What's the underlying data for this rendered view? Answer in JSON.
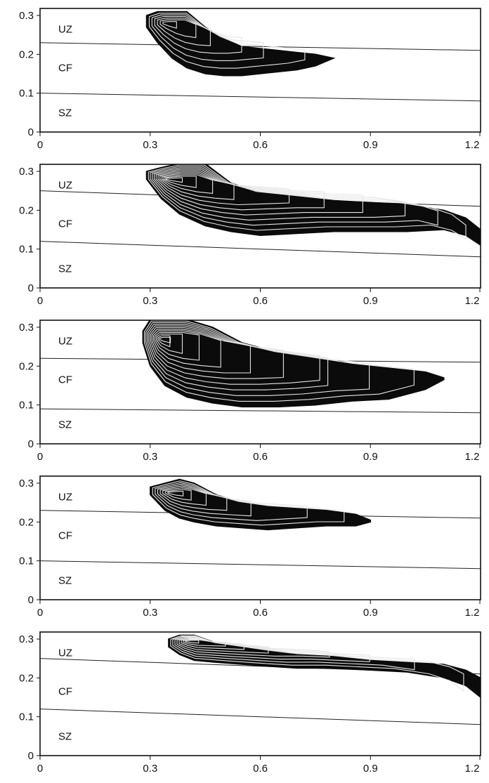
{
  "chart_data": [
    {
      "type": "area",
      "xlim": [
        0,
        1.2
      ],
      "ylim": [
        0,
        0.3
      ],
      "xticks": [
        "0",
        "0.3",
        "0.6",
        "0.9",
        "1.2"
      ],
      "yticks": [
        "0",
        "0.1",
        "0.2",
        "0.3"
      ],
      "zones": [
        "UZ",
        "CF",
        "SZ"
      ],
      "boundaries": [
        {
          "x": [
            0,
            1.2
          ],
          "y": [
            0.23,
            0.21
          ]
        },
        {
          "x": [
            0,
            1.2
          ],
          "y": [
            0.1,
            0.08
          ]
        }
      ],
      "plume_upper": {
        "x": [
          0.29,
          0.32,
          0.36,
          0.4,
          0.45,
          0.5,
          0.55,
          0.6,
          0.65,
          0.7,
          0.75,
          0.8
        ],
        "y": [
          0.3,
          0.31,
          0.31,
          0.31,
          0.27,
          0.24,
          0.22,
          0.215,
          0.21,
          0.205,
          0.2,
          0.19
        ]
      },
      "plume_lower": {
        "x": [
          0.29,
          0.32,
          0.36,
          0.4,
          0.45,
          0.5,
          0.55,
          0.6,
          0.65,
          0.7,
          0.75,
          0.8
        ],
        "y": [
          0.27,
          0.23,
          0.19,
          0.165,
          0.15,
          0.145,
          0.145,
          0.15,
          0.155,
          0.16,
          0.17,
          0.19
        ]
      },
      "contours": 7
    },
    {
      "type": "area",
      "xlim": [
        0,
        1.2
      ],
      "ylim": [
        0,
        0.3
      ],
      "xticks": [
        "0",
        "0.3",
        "0.6",
        "0.9",
        "1.2"
      ],
      "yticks": [
        "0",
        "0.1",
        "0.2",
        "0.3"
      ],
      "zones": [
        "UZ",
        "CF",
        "SZ"
      ],
      "boundaries": [
        {
          "x": [
            0,
            1.2
          ],
          "y": [
            0.25,
            0.21
          ]
        },
        {
          "x": [
            0,
            1.2
          ],
          "y": [
            0.12,
            0.08
          ]
        }
      ],
      "plume_upper": {
        "x": [
          0.29,
          0.33,
          0.38,
          0.45,
          0.52,
          0.6,
          0.7,
          0.8,
          0.9,
          1.0,
          1.1,
          1.16,
          1.2,
          1.22
        ],
        "y": [
          0.3,
          0.31,
          0.32,
          0.32,
          0.27,
          0.245,
          0.235,
          0.225,
          0.22,
          0.215,
          0.2,
          0.18,
          0.15,
          0.11
        ]
      },
      "plume_lower": {
        "x": [
          0.29,
          0.33,
          0.38,
          0.45,
          0.52,
          0.6,
          0.7,
          0.8,
          0.9,
          1.0,
          1.1,
          1.16,
          1.2,
          1.22
        ],
        "y": [
          0.28,
          0.23,
          0.19,
          0.16,
          0.145,
          0.135,
          0.14,
          0.145,
          0.145,
          0.145,
          0.15,
          0.135,
          0.11,
          0.08
        ]
      },
      "contours": 11
    },
    {
      "type": "area",
      "xlim": [
        0,
        1.2
      ],
      "ylim": [
        0,
        0.3
      ],
      "xticks": [
        "0",
        "0.3",
        "0.6",
        "0.9",
        "1.2"
      ],
      "yticks": [
        "0",
        "0.1",
        "0.2",
        "0.3"
      ],
      "zones": [
        "UZ",
        "CF",
        "SZ"
      ],
      "boundaries": [
        {
          "x": [
            0,
            1.2
          ],
          "y": [
            0.22,
            0.21
          ]
        },
        {
          "x": [
            0,
            1.2
          ],
          "y": [
            0.09,
            0.08
          ]
        }
      ],
      "plume_upper": {
        "x": [
          0.28,
          0.3,
          0.34,
          0.4,
          0.47,
          0.55,
          0.65,
          0.75,
          0.85,
          0.95,
          1.05,
          1.1
        ],
        "y": [
          0.29,
          0.32,
          0.32,
          0.32,
          0.3,
          0.26,
          0.235,
          0.22,
          0.205,
          0.195,
          0.185,
          0.17
        ]
      },
      "plume_lower": {
        "x": [
          0.28,
          0.3,
          0.34,
          0.4,
          0.47,
          0.55,
          0.65,
          0.75,
          0.85,
          0.95,
          1.05,
          1.1
        ],
        "y": [
          0.26,
          0.2,
          0.15,
          0.12,
          0.105,
          0.095,
          0.095,
          0.1,
          0.11,
          0.115,
          0.14,
          0.165
        ]
      },
      "contours": 12
    },
    {
      "type": "area",
      "xlim": [
        0,
        1.2
      ],
      "ylim": [
        0,
        0.3
      ],
      "xticks": [
        "0",
        "0.3",
        "0.6",
        "0.9",
        "1.2"
      ],
      "yticks": [
        "0",
        "0.1",
        "0.2",
        "0.3"
      ],
      "zones": [
        "UZ",
        "CF",
        "SZ"
      ],
      "boundaries": [
        {
          "x": [
            0,
            1.2
          ],
          "y": [
            0.23,
            0.21
          ]
        },
        {
          "x": [
            0,
            1.2
          ],
          "y": [
            0.1,
            0.08
          ]
        }
      ],
      "plume_upper": {
        "x": [
          0.3,
          0.34,
          0.38,
          0.42,
          0.48,
          0.55,
          0.62,
          0.7,
          0.78,
          0.86,
          0.9
        ],
        "y": [
          0.29,
          0.3,
          0.31,
          0.3,
          0.27,
          0.25,
          0.24,
          0.235,
          0.23,
          0.22,
          0.205
        ]
      },
      "plume_lower": {
        "x": [
          0.3,
          0.34,
          0.38,
          0.42,
          0.48,
          0.55,
          0.62,
          0.7,
          0.78,
          0.86,
          0.9
        ],
        "y": [
          0.27,
          0.23,
          0.21,
          0.2,
          0.19,
          0.185,
          0.18,
          0.185,
          0.19,
          0.19,
          0.2
        ]
      },
      "contours": 8
    },
    {
      "type": "area",
      "xlim": [
        0,
        1.2
      ],
      "ylim": [
        0,
        0.3
      ],
      "xticks": [
        "0",
        "0.3",
        "0.6",
        "0.9",
        "1.2"
      ],
      "yticks": [
        "0",
        "0.1",
        "0.2",
        "0.3"
      ],
      "zones": [
        "UZ",
        "CF",
        "SZ"
      ],
      "boundaries": [
        {
          "x": [
            0,
            1.2
          ],
          "y": [
            0.25,
            0.21
          ]
        },
        {
          "x": [
            0,
            1.2
          ],
          "y": [
            0.12,
            0.08
          ]
        }
      ],
      "plume_upper": {
        "x": [
          0.35,
          0.38,
          0.42,
          0.48,
          0.55,
          0.62,
          0.7,
          0.8,
          0.9,
          1.0,
          1.1,
          1.16,
          1.2,
          1.22
        ],
        "y": [
          0.3,
          0.31,
          0.31,
          0.29,
          0.28,
          0.27,
          0.26,
          0.255,
          0.245,
          0.24,
          0.235,
          0.22,
          0.2,
          0.16
        ]
      },
      "plume_lower": {
        "x": [
          0.35,
          0.38,
          0.42,
          0.48,
          0.55,
          0.62,
          0.7,
          0.8,
          0.9,
          1.0,
          1.1,
          1.16,
          1.2,
          1.22
        ],
        "y": [
          0.28,
          0.26,
          0.245,
          0.24,
          0.235,
          0.23,
          0.225,
          0.225,
          0.22,
          0.215,
          0.2,
          0.18,
          0.15,
          0.11
        ]
      },
      "contours": 9
    }
  ]
}
